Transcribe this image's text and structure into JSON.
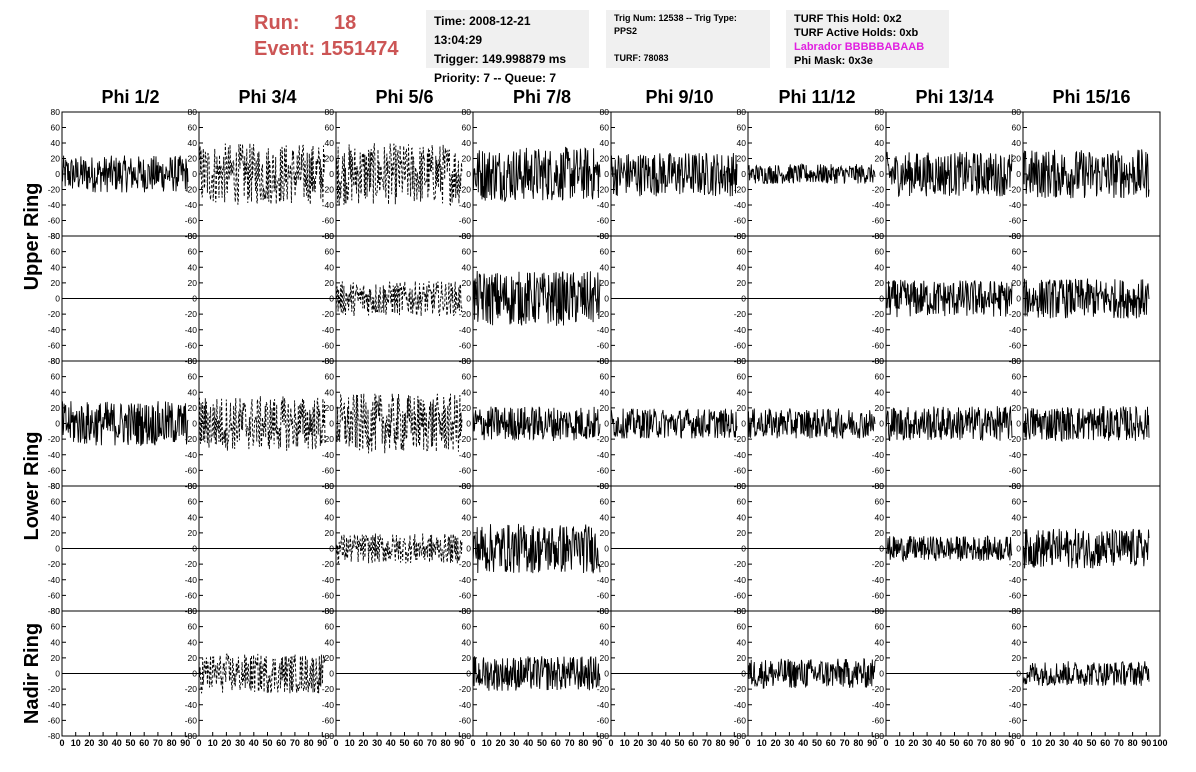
{
  "header": {
    "run_label": "Run:",
    "run_value": "18",
    "event_label": "Event:",
    "event_value": "1551474",
    "time": "Time: 2008-12-21 13:04:29",
    "trigger": "Trigger: 149.998879 ms",
    "priority": "Priority: 7 -- Queue: 7",
    "trig_num": "Trig Num: 12538 -- Trig Type: PPS2",
    "turf": "TURF: 78083",
    "turf_this_hold": "TURF This Hold: 0x2",
    "turf_active_holds": "TURF Active Holds: 0xb",
    "labrador": "Labrador BBBBBABAAB",
    "phi_mask": "Phi Mask: 0x3e"
  },
  "colors": {
    "labrador": "#e020e0",
    "run_text": "#cc5555",
    "info_bg": "#f0f0f0"
  },
  "chart_data": {
    "type": "line",
    "description_free": true,
    "columns": [
      "Phi 1/2",
      "Phi 3/4",
      "Phi 5/6",
      "Phi 7/8",
      "Phi 9/10",
      "Phi 11/12",
      "Phi 13/14",
      "Phi 15/16"
    ],
    "row_groups": [
      "Upper Ring",
      "Lower Ring",
      "Nadir Ring"
    ],
    "xlim": [
      0,
      100
    ],
    "ylim": [
      -80,
      80
    ],
    "y_ticks": [
      "80",
      "60",
      "40",
      "20",
      "0",
      "-20",
      "-40",
      "-60",
      "-80"
    ],
    "x_ticks_bottom": [
      "0",
      "10",
      "20",
      "30",
      "40",
      "50",
      "60",
      "70",
      "80",
      "90",
      "100"
    ],
    "rows": [
      {
        "group": "Upper Ring",
        "traces": [
          {
            "style": "solid",
            "amp": 15
          },
          {
            "style": "dashed",
            "amp": 25
          },
          {
            "style": "dashed",
            "amp": 25
          },
          {
            "style": "solid",
            "amp": 22
          },
          {
            "style": "solid",
            "amp": 18
          },
          {
            "style": "solid",
            "amp": 8
          },
          {
            "style": "solid",
            "amp": 18
          },
          {
            "style": "solid",
            "amp": 20
          }
        ]
      },
      {
        "group": "Upper Ring",
        "traces": [
          {
            "style": "flat",
            "amp": 0
          },
          {
            "style": "flat",
            "amp": 0
          },
          {
            "style": "dashed",
            "amp": 14
          },
          {
            "style": "solid",
            "amp": 22
          },
          {
            "style": "flat",
            "amp": 0
          },
          {
            "style": "flat",
            "amp": 0
          },
          {
            "style": "solid",
            "amp": 15
          },
          {
            "style": "solid",
            "amp": 16
          }
        ]
      },
      {
        "group": "Lower Ring",
        "traces": [
          {
            "style": "solid",
            "amp": 18
          },
          {
            "style": "dashed",
            "amp": 22
          },
          {
            "style": "dashed",
            "amp": 24
          },
          {
            "style": "solid",
            "amp": 14
          },
          {
            "style": "solid",
            "amp": 12
          },
          {
            "style": "solid",
            "amp": 12
          },
          {
            "style": "solid",
            "amp": 14
          },
          {
            "style": "solid",
            "amp": 14
          }
        ]
      },
      {
        "group": "Lower Ring",
        "traces": [
          {
            "style": "flat",
            "amp": 0
          },
          {
            "style": "flat",
            "amp": 0
          },
          {
            "style": "dashed",
            "amp": 12
          },
          {
            "style": "solid",
            "amp": 20
          },
          {
            "style": "flat",
            "amp": 0
          },
          {
            "style": "flat",
            "amp": 0
          },
          {
            "style": "solid",
            "amp": 10
          },
          {
            "style": "solid",
            "amp": 16
          }
        ]
      },
      {
        "group": "Nadir Ring",
        "traces": [
          {
            "style": "flat",
            "amp": 0
          },
          {
            "style": "dashed",
            "amp": 16
          },
          {
            "style": "flat",
            "amp": 0
          },
          {
            "style": "solid",
            "amp": 14
          },
          {
            "style": "flat",
            "amp": 0
          },
          {
            "style": "solid",
            "amp": 12
          },
          {
            "style": "flat",
            "amp": 0
          },
          {
            "style": "solid",
            "amp": 10
          }
        ]
      }
    ]
  }
}
